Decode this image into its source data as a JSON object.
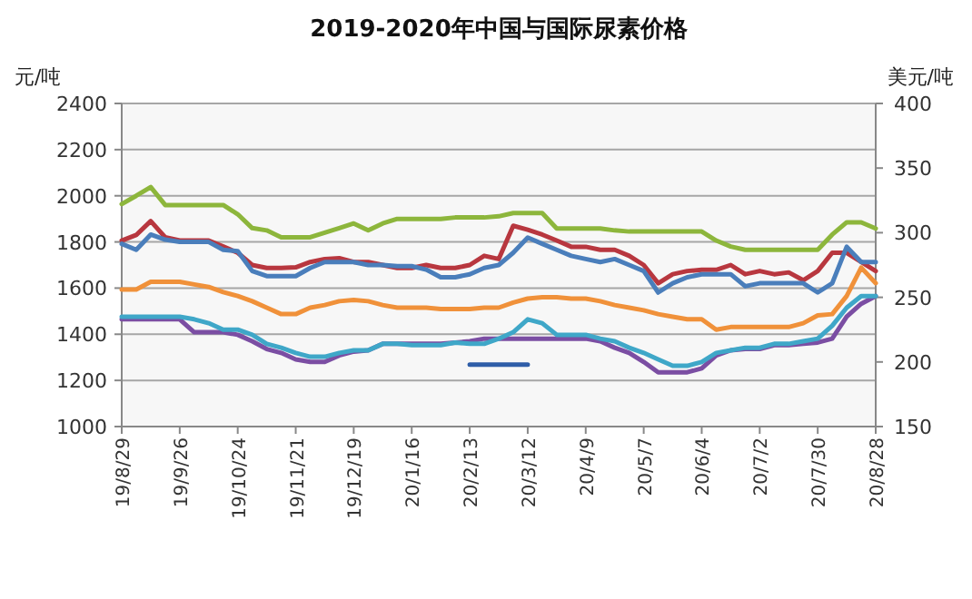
{
  "chart_data": {
    "type": "line",
    "title": "2019-2020年中国与国际尿素价格",
    "ylabel": "元/吨",
    "y2label": "美元/吨",
    "categories": [
      "19/8/29",
      null,
      null,
      null,
      "19/9/26",
      null,
      null,
      null,
      "19/10/24",
      null,
      null,
      null,
      "19/11/21",
      null,
      null,
      null,
      "19/12/19",
      null,
      null,
      null,
      "20/1/16",
      null,
      null,
      null,
      "20/2/13",
      null,
      null,
      null,
      "20/3/12",
      null,
      null,
      null,
      "20/4/9",
      null,
      null,
      null,
      "20/5/7",
      null,
      null,
      null,
      "20/6/4",
      null,
      null,
      null,
      "20/7/2",
      null,
      null,
      null,
      "20/7/30",
      null,
      null,
      null,
      "20/8/28"
    ],
    "ylim": [
      1000,
      2400
    ],
    "yticks": [
      1000,
      1200,
      1400,
      1600,
      1800,
      2000,
      2200,
      2400
    ],
    "y2lim": [
      150,
      400
    ],
    "y2ticks": [
      150,
      200,
      250,
      300,
      350,
      400
    ],
    "grid": "y",
    "series": [
      {
        "color": "#8db63c",
        "values": [
          1964,
          2000,
          2038,
          1960,
          1960,
          1960,
          1960,
          1960,
          1920,
          1860,
          1850,
          1820,
          1820,
          1820,
          1840,
          1860,
          1880,
          1850,
          1880,
          1900,
          1900,
          1900,
          1900,
          1906,
          1906,
          1906,
          1911,
          1925,
          1925,
          1925,
          1858,
          1858,
          1858,
          1858,
          1850,
          1845,
          1845,
          1845,
          1845,
          1845,
          1845,
          1806,
          1780,
          1766,
          1766,
          1766,
          1766,
          1766,
          1766,
          1832,
          1885,
          1885,
          1858
        ]
      },
      {
        "color": "#b8373f",
        "values": [
          1806,
          1830,
          1890,
          1820,
          1806,
          1806,
          1806,
          1780,
          1753,
          1700,
          1687,
          1687,
          1690,
          1713,
          1726,
          1730,
          1713,
          1713,
          1700,
          1687,
          1687,
          1700,
          1687,
          1687,
          1700,
          1740,
          1726,
          1870,
          1853,
          1832,
          1806,
          1779,
          1779,
          1766,
          1766,
          1740,
          1700,
          1621,
          1660,
          1674,
          1679,
          1679,
          1700,
          1660,
          1674,
          1660,
          1668,
          1634,
          1674,
          1753,
          1753,
          1713,
          1674
        ]
      },
      {
        "color": "#4a7ebb",
        "values": [
          1792,
          1766,
          1832,
          1810,
          1800,
          1800,
          1800,
          1766,
          1760,
          1674,
          1652,
          1652,
          1652,
          1687,
          1713,
          1713,
          1713,
          1700,
          1700,
          1695,
          1695,
          1680,
          1647,
          1647,
          1660,
          1687,
          1700,
          1753,
          1819,
          1792,
          1766,
          1740,
          1726,
          1713,
          1726,
          1700,
          1674,
          1581,
          1621,
          1647,
          1660,
          1660,
          1660,
          1608,
          1621,
          1621,
          1621,
          1621,
          1581,
          1621,
          1779,
          1713,
          1713
        ]
      },
      {
        "color": "#f0913a",
        "axis": "y2",
        "values": [
          256,
          256,
          262,
          262,
          262,
          260,
          258,
          254,
          251,
          247,
          242,
          237,
          237,
          242,
          244,
          247,
          248,
          247,
          244,
          242,
          242,
          242,
          241,
          241,
          241,
          242,
          242,
          246,
          249,
          250,
          250,
          249,
          249,
          247,
          244,
          242,
          240,
          237,
          235,
          233,
          233,
          225,
          227,
          227,
          227,
          227,
          227,
          230,
          236,
          237,
          251,
          273,
          261
        ]
      },
      {
        "color": "#7b4ea3",
        "axis": "y2",
        "values": [
          233,
          233,
          233,
          233,
          233,
          223,
          223,
          223,
          221,
          216,
          210,
          207,
          202,
          200,
          200,
          205,
          208,
          209,
          214,
          214,
          214,
          214,
          214,
          215,
          216,
          218,
          218,
          218,
          218,
          218,
          218,
          218,
          218,
          216,
          211,
          207,
          200,
          192,
          192,
          192,
          195,
          205,
          209,
          210,
          210,
          213,
          213,
          214,
          215,
          218,
          235,
          245,
          251
        ]
      },
      {
        "color": "#3fa7c8",
        "axis": "y2",
        "values": [
          235,
          235,
          235,
          235,
          235,
          233,
          230,
          225,
          225,
          221,
          214,
          211,
          207,
          204,
          204,
          207,
          209,
          209,
          214,
          214,
          213,
          213,
          213,
          215,
          214,
          214,
          218,
          223,
          233,
          230,
          221,
          221,
          221,
          218,
          216,
          211,
          207,
          202,
          197,
          197,
          200,
          207,
          209,
          211,
          211,
          214,
          214,
          216,
          218,
          228,
          242,
          251,
          251
        ]
      },
      {
        "color": "#2f5ea8",
        "axis": "y2",
        "values": [
          null,
          null,
          null,
          null,
          null,
          null,
          null,
          null,
          null,
          null,
          null,
          null,
          null,
          null,
          null,
          null,
          null,
          null,
          null,
          null,
          null,
          null,
          null,
          null,
          198,
          198,
          198,
          198,
          198,
          null,
          null,
          null,
          null,
          null,
          null,
          null,
          null,
          null,
          null,
          null,
          null,
          null,
          null,
          null,
          null,
          null,
          null,
          null,
          null,
          null,
          null,
          null,
          null
        ]
      }
    ]
  }
}
